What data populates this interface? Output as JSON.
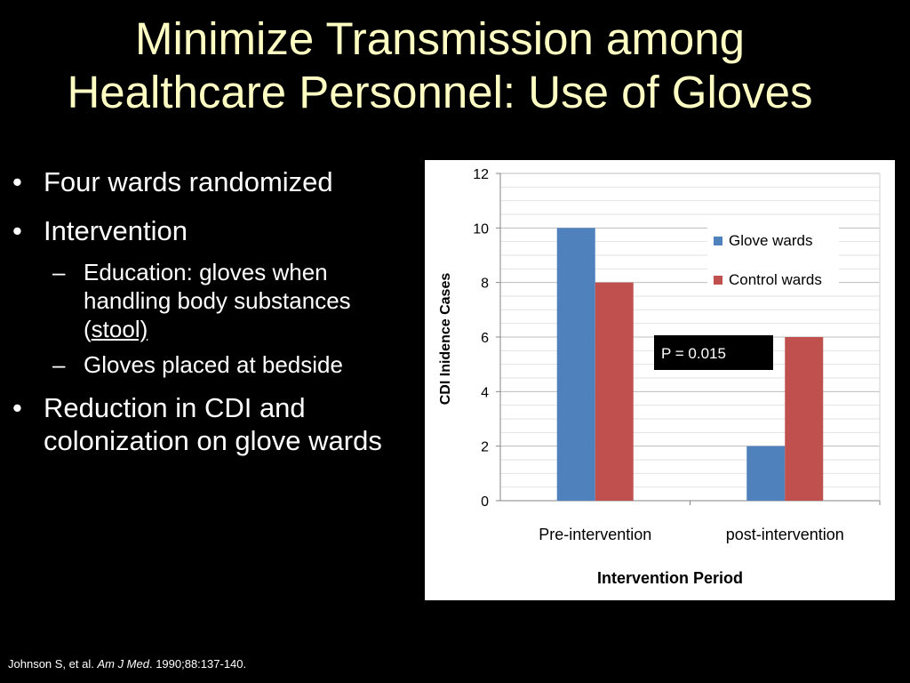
{
  "slide": {
    "title_line1": "Minimize Transmission among",
    "title_line2": "Healthcare Personnel: Use of Gloves",
    "bullet_glyph": "•",
    "dash_glyph": "–",
    "bullets": [
      "Four wards randomized",
      "Intervention",
      "Reduction in CDI and colonization on glove wards"
    ],
    "subbullets": [
      {
        "text_before": "Education: gloves when handling body substances (",
        "underlined": "stool)",
        "text_after": ""
      },
      {
        "text_before": "Gloves placed at bedside",
        "underlined": "",
        "text_after": ""
      }
    ],
    "citation": {
      "authors": "Johnson S, et al. ",
      "journal": "Am J Med",
      "details": ". 1990;88:137-140."
    }
  },
  "chart_data": {
    "type": "bar",
    "categories": [
      "Pre-intervention",
      "post-intervention"
    ],
    "series": [
      {
        "name": "Glove wards",
        "values": [
          10,
          2
        ],
        "color": "#4f81bd"
      },
      {
        "name": "Control wards",
        "values": [
          8,
          6
        ],
        "color": "#c0504d"
      }
    ],
    "xlabel": "Intervention Period",
    "ylabel": "CDI Inidence Cases",
    "ylim": [
      0,
      12
    ],
    "yticks": [
      0,
      2,
      4,
      6,
      8,
      10,
      12
    ],
    "grid": true,
    "legend": "right",
    "annotation": "P = 0.015"
  }
}
